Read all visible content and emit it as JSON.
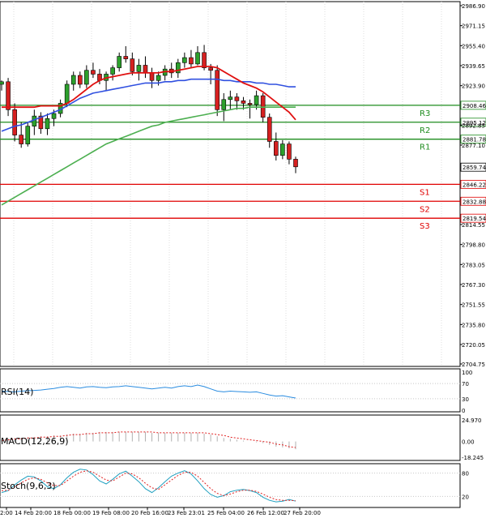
{
  "chart_data": [
    {
      "type": "candlestick",
      "panel": "price",
      "y_ticks": [
        2986.9,
        2971.15,
        2955.4,
        2939.65,
        2923.9,
        2892.85,
        2877.1,
        2814.55,
        2798.8,
        2783.05,
        2767.3,
        2751.55,
        2735.8,
        2720.05,
        2704.75
      ],
      "ylim": [
        2704.75,
        2986.9
      ],
      "current_price": "2859.74",
      "x_labels": [
        "2:00",
        "14 Feb 20:00",
        "18 Feb 00:00",
        "19 Feb 08:00",
        "20 Feb 16:00",
        "23 Feb 23:01",
        "25 Feb 04:00",
        "26 Feb 12:00",
        "27 Feb 20:00"
      ],
      "levels": [
        {
          "name": "R3",
          "value": 2908.46,
          "label": "2908.46",
          "color": "#1e8c1e"
        },
        {
          "name": "R2",
          "value": 2895.12,
          "label": "2895.12",
          "color": "#1e8c1e"
        },
        {
          "name": "R1",
          "value": 2881.78,
          "label": "2881.78",
          "color": "#1e8c1e"
        },
        {
          "name": "S1",
          "value": 2846.22,
          "label": "2846.22",
          "color": "#e00000"
        },
        {
          "name": "S2",
          "value": 2832.88,
          "label": "2832.88",
          "color": "#e00000"
        },
        {
          "name": "S3",
          "value": 2819.54,
          "label": "2819.54",
          "color": "#e00000"
        }
      ],
      "candles": [
        [
          2925,
          2928,
          2920,
          2927
        ],
        [
          2927,
          2930,
          2900,
          2905
        ],
        [
          2905,
          2910,
          2880,
          2885
        ],
        [
          2885,
          2895,
          2875,
          2878
        ],
        [
          2878,
          2895,
          2876,
          2892
        ],
        [
          2892,
          2905,
          2885,
          2900
        ],
        [
          2900,
          2903,
          2886,
          2890
        ],
        [
          2890,
          2902,
          2885,
          2898
        ],
        [
          2898,
          2905,
          2892,
          2902
        ],
        [
          2902,
          2913,
          2899,
          2910
        ],
        [
          2910,
          2928,
          2907,
          2925
        ],
        [
          2925,
          2935,
          2920,
          2932
        ],
        [
          2932,
          2935,
          2922,
          2925
        ],
        [
          2925,
          2940,
          2922,
          2936
        ],
        [
          2936,
          2942,
          2930,
          2933
        ],
        [
          2933,
          2937,
          2925,
          2928
        ],
        [
          2928,
          2935,
          2920,
          2933
        ],
        [
          2933,
          2940,
          2928,
          2938
        ],
        [
          2938,
          2950,
          2935,
          2947
        ],
        [
          2947,
          2955,
          2942,
          2945
        ],
        [
          2945,
          2950,
          2932,
          2935
        ],
        [
          2935,
          2945,
          2928,
          2940
        ],
        [
          2940,
          2947,
          2930,
          2934
        ],
        [
          2934,
          2938,
          2922,
          2928
        ],
        [
          2928,
          2935,
          2924,
          2932
        ],
        [
          2932,
          2940,
          2928,
          2937
        ],
        [
          2937,
          2942,
          2930,
          2934
        ],
        [
          2934,
          2945,
          2930,
          2942
        ],
        [
          2942,
          2950,
          2938,
          2946
        ],
        [
          2946,
          2952,
          2938,
          2941
        ],
        [
          2941,
          2955,
          2940,
          2950
        ],
        [
          2950,
          2956,
          2936,
          2938
        ],
        [
          2938,
          2941,
          2925,
          2936
        ],
        [
          2936,
          2940,
          2900,
          2905
        ],
        [
          2905,
          2918,
          2896,
          2913
        ],
        [
          2913,
          2920,
          2905,
          2915
        ],
        [
          2915,
          2918,
          2905,
          2912
        ],
        [
          2912,
          2915,
          2905,
          2910
        ],
        [
          2910,
          2913,
          2898,
          2909
        ],
        [
          2909,
          2920,
          2905,
          2916
        ],
        [
          2916,
          2918,
          2895,
          2899
        ],
        [
          2899,
          2902,
          2875,
          2880
        ],
        [
          2880,
          2887,
          2865,
          2869
        ],
        [
          2869,
          2881,
          2866,
          2878
        ],
        [
          2878,
          2880,
          2862,
          2866
        ],
        [
          2866,
          2868,
          2855,
          2860
        ]
      ],
      "ma_blue": [
        2888,
        2890,
        2892,
        2893,
        2895,
        2897,
        2899,
        2901,
        2903,
        2905,
        2908,
        2911,
        2914,
        2916,
        2918,
        2919,
        2920,
        2921,
        2922,
        2923,
        2924,
        2925,
        2926,
        2926,
        2926,
        2927,
        2927,
        2928,
        2928,
        2929,
        2929,
        2929,
        2929,
        2929,
        2928,
        2928,
        2927,
        2927,
        2927,
        2926,
        2926,
        2925,
        2925,
        2924,
        2923,
        2923
      ],
      "ma_red": [
        2907,
        2907,
        2907,
        2907,
        2907,
        2907,
        2908,
        2908,
        2908,
        2908,
        2910,
        2913,
        2917,
        2921,
        2925,
        2928,
        2930,
        2931,
        2932,
        2933,
        2934,
        2934,
        2934,
        2934,
        2934,
        2935,
        2935,
        2936,
        2937,
        2938,
        2939,
        2939,
        2939,
        2938,
        2935,
        2932,
        2929,
        2926,
        2924,
        2922,
        2919,
        2915,
        2911,
        2907,
        2903,
        2897
      ],
      "ma_green": [
        2830,
        2833,
        2836,
        2839,
        2842,
        2845,
        2848,
        2851,
        2854,
        2857,
        2860,
        2863,
        2866,
        2869,
        2872,
        2875,
        2878,
        2880,
        2882,
        2884,
        2886,
        2888,
        2890,
        2892,
        2893,
        2895,
        2896,
        2897,
        2898,
        2899,
        2900,
        2901,
        2902,
        2903,
        2904,
        2905,
        2906,
        2906,
        2907,
        2907,
        2907,
        2907,
        2907,
        2907,
        2907,
        2907
      ]
    },
    {
      "type": "line",
      "panel": "rsi",
      "label": "RSI(14)",
      "y_ticks": [
        "100",
        "70",
        "30",
        "0"
      ],
      "ylim": [
        0,
        100
      ],
      "values": [
        50,
        49,
        48,
        50,
        51,
        52,
        53,
        55,
        57,
        60,
        62,
        60,
        58,
        61,
        62,
        60,
        59,
        61,
        62,
        64,
        62,
        60,
        58,
        56,
        58,
        60,
        58,
        62,
        64,
        62,
        66,
        62,
        56,
        50,
        48,
        50,
        49,
        48,
        47,
        48,
        44,
        40,
        37,
        38,
        35,
        32
      ]
    },
    {
      "type": "bar",
      "panel": "macd",
      "label": "MACD(12,26,9)",
      "y_ticks": [
        "24.970",
        "0.00",
        "-18.245"
      ],
      "ylim": [
        -18.245,
        24.97
      ],
      "values": [
        2,
        3,
        4,
        4,
        5,
        5,
        6,
        6,
        7,
        7,
        8,
        9,
        9,
        10,
        10,
        11,
        11,
        11,
        11,
        11,
        11,
        11,
        11,
        10,
        10,
        10,
        10,
        10,
        10,
        10,
        10,
        9,
        8,
        6,
        4,
        3,
        2,
        1,
        0,
        -1,
        -2,
        -4,
        -6,
        -7,
        -8,
        -9
      ],
      "signal": [
        1,
        2,
        3,
        3,
        4,
        4,
        5,
        5,
        6,
        6,
        7,
        8,
        8,
        9,
        9,
        10,
        10,
        10,
        11,
        11,
        11,
        11,
        11,
        11,
        10,
        10,
        10,
        10,
        10,
        10,
        10,
        10,
        9,
        8,
        7,
        5,
        4,
        3,
        2,
        1,
        0,
        -1,
        -3,
        -4,
        -6,
        -7
      ]
    },
    {
      "type": "line",
      "panel": "stoch",
      "label": "Stoch(9,6,3)",
      "y_ticks": [
        "80",
        "20"
      ],
      "ylim": [
        0,
        100
      ],
      "k": [
        30,
        35,
        50,
        62,
        72,
        70,
        60,
        45,
        40,
        50,
        68,
        82,
        90,
        88,
        76,
        60,
        52,
        64,
        78,
        85,
        72,
        58,
        40,
        30,
        42,
        58,
        72,
        80,
        86,
        78,
        60,
        40,
        25,
        18,
        22,
        32,
        36,
        38,
        35,
        30,
        18,
        10,
        6,
        8,
        12,
        8
      ],
      "d": [
        35,
        36,
        45,
        55,
        64,
        68,
        64,
        55,
        48,
        48,
        60,
        72,
        82,
        86,
        82,
        72,
        62,
        60,
        70,
        80,
        78,
        68,
        54,
        42,
        38,
        50,
        62,
        74,
        82,
        82,
        72,
        56,
        40,
        28,
        22,
        26,
        32,
        36,
        36,
        33,
        26,
        18,
        12,
        10,
        10,
        9
      ]
    }
  ]
}
